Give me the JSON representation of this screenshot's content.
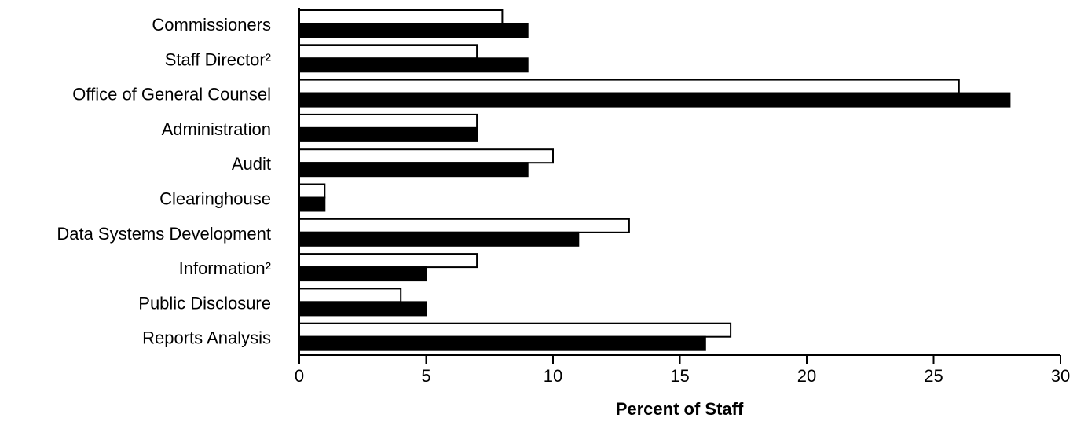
{
  "chart_data": {
    "type": "bar",
    "orientation": "horizontal",
    "categories": [
      "Commissioners",
      "Staff Director²",
      "Office of General Counsel",
      "Administration",
      "Audit",
      "Clearinghouse",
      "Data Systems Development",
      "Information²",
      "Public Disclosure",
      "Reports Analysis"
    ],
    "series": [
      {
        "fill": "#ffffff",
        "values": [
          8,
          7,
          26,
          7,
          10,
          1,
          13,
          7,
          4,
          17
        ]
      },
      {
        "fill": "#000000",
        "values": [
          9,
          9,
          28,
          7,
          9,
          1,
          11,
          5,
          5,
          16
        ]
      }
    ],
    "xlabel": "Percent of Staff",
    "ylabel": "",
    "xlim": [
      0,
      30
    ],
    "xticks": [
      "0",
      "5",
      "10",
      "15",
      "20",
      "25",
      "30"
    ],
    "grid": false,
    "legend": "none"
  }
}
